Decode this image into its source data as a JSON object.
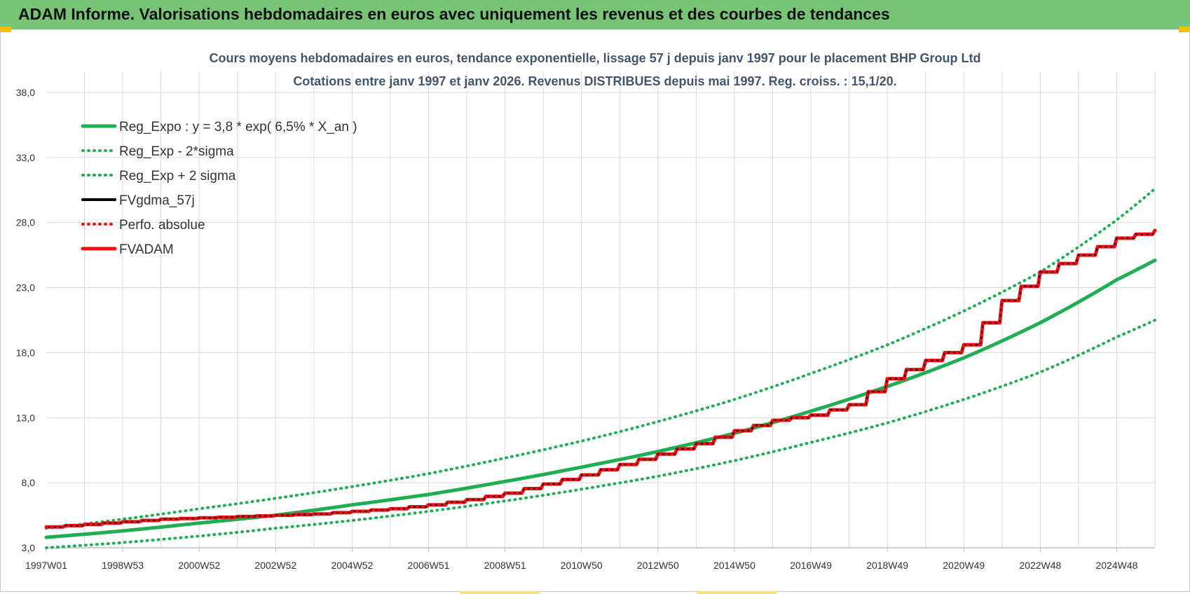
{
  "header": {
    "title": "ADAM Informe. Valorisations hebdomadaires en euros avec uniquement les revenus et des courbes de tendances"
  },
  "colors": {
    "header_bg": "#77c477",
    "green": "#1fae52",
    "red": "#ee1111",
    "black": "#000000",
    "grid": "#d9d9d9"
  },
  "chart_data": {
    "type": "line",
    "title_lines": [
      "Cours moyens hebdomadaires en euros, tendance exponentielle, lissage 57 j depuis janv 1997  pour le placement BHP Group Ltd",
      "Cotations entre janv 1997 et janv 2026. Revenus DISTRIBUES depuis mai 1997.  Reg. croiss. : 15,1/20."
    ],
    "xlabel": "",
    "ylabel": "",
    "ylim": [
      3.0,
      38.0
    ],
    "xlim": [
      1997.0,
      2026.0
    ],
    "y_ticks": [
      "3,0",
      "8,0",
      "13,0",
      "18,0",
      "23,0",
      "28,0",
      "33,0",
      "38,0"
    ],
    "y_tick_values": [
      3,
      8,
      13,
      18,
      23,
      28,
      33,
      38
    ],
    "x_ticks": [
      "1997W01",
      "1998W53",
      "2000W52",
      "2002W52",
      "2004W52",
      "2006W51",
      "2008W51",
      "2010W50",
      "2012W50",
      "2014W50",
      "2016W49",
      "2018W49",
      "2020W49",
      "2022W48",
      "2024W48"
    ],
    "x_tick_values": [
      1997,
      1999,
      2001,
      2003,
      2005,
      2007,
      2009,
      2011,
      2013,
      2015,
      2017,
      2019,
      2021,
      2023,
      2025
    ],
    "grid": true,
    "legend_position": "top-left",
    "series": [
      {
        "name": "Reg_Expo : y = 3,8 * exp( 6,5% *  X_an )",
        "style": "solid-thick",
        "color": "#1fae52",
        "x": [
          1997,
          1999,
          2001,
          2003,
          2005,
          2007,
          2009,
          2011,
          2013,
          2015,
          2017,
          2019,
          2021,
          2023,
          2025,
          2026
        ],
        "y": [
          3.8,
          4.3,
          4.9,
          5.5,
          6.3,
          7.1,
          8.1,
          9.2,
          10.4,
          11.8,
          13.5,
          15.4,
          17.6,
          20.3,
          23.6,
          25.1
        ]
      },
      {
        "name": "Reg_Exp - 2*sigma",
        "style": "dotted",
        "color": "#1fae52",
        "x": [
          1997,
          1999,
          2001,
          2003,
          2005,
          2007,
          2009,
          2011,
          2013,
          2015,
          2017,
          2019,
          2021,
          2023,
          2025,
          2026
        ],
        "y": [
          3.0,
          3.4,
          3.9,
          4.5,
          5.1,
          5.8,
          6.6,
          7.5,
          8.5,
          9.7,
          11.1,
          12.6,
          14.4,
          16.5,
          19.2,
          20.5
        ]
      },
      {
        "name": "Reg_Exp + 2 sigma",
        "style": "dotted",
        "color": "#1fae52",
        "x": [
          1997,
          1999,
          2001,
          2003,
          2005,
          2007,
          2009,
          2011,
          2013,
          2015,
          2017,
          2019,
          2021,
          2023,
          2025,
          2026
        ],
        "y": [
          4.5,
          5.2,
          6.0,
          6.8,
          7.7,
          8.7,
          9.9,
          11.2,
          12.7,
          14.4,
          16.4,
          18.6,
          21.2,
          24.2,
          28.2,
          30.6
        ]
      },
      {
        "name": "FVgdma_57j",
        "style": "solid-thin",
        "color": "#000000",
        "x": [
          1997,
          1998,
          1999,
          2000,
          2001,
          2002,
          2003,
          2004,
          2005,
          2006,
          2007,
          2008,
          2009,
          2010,
          2011,
          2012,
          2013,
          2014,
          2015,
          2016,
          2017,
          2018,
          2019,
          2020,
          2021,
          2022,
          2023,
          2024,
          2025,
          2026
        ],
        "y": [
          4.6,
          4.8,
          5.0,
          5.2,
          5.3,
          5.4,
          5.5,
          5.6,
          5.8,
          6.0,
          6.3,
          6.7,
          7.2,
          7.9,
          8.6,
          9.4,
          10.2,
          11.0,
          12.0,
          12.8,
          13.2,
          14.0,
          16.0,
          17.4,
          18.6,
          22.0,
          24.2,
          25.5,
          26.8,
          27.4
        ]
      },
      {
        "name": "Perfo. absolue",
        "style": "dotted",
        "color": "#ee1111",
        "x": [
          1997,
          1998,
          1999,
          2000,
          2001,
          2002,
          2003,
          2004,
          2005,
          2006,
          2007,
          2008,
          2009,
          2010,
          2011,
          2012,
          2013,
          2014,
          2015,
          2016,
          2017,
          2018,
          2019,
          2020,
          2021,
          2022,
          2023,
          2024,
          2025,
          2026
        ],
        "y": [
          4.6,
          4.8,
          5.0,
          5.2,
          5.3,
          5.4,
          5.5,
          5.6,
          5.8,
          6.0,
          6.3,
          6.7,
          7.2,
          7.9,
          8.6,
          9.4,
          10.2,
          11.0,
          12.0,
          12.8,
          13.2,
          14.0,
          16.0,
          17.4,
          18.6,
          22.0,
          24.2,
          25.5,
          26.8,
          27.4
        ]
      },
      {
        "name": "FVADAM",
        "style": "solid-thick",
        "color": "#ee1111",
        "x": [
          1997,
          1998,
          1999,
          2000,
          2001,
          2002,
          2003,
          2004,
          2005,
          2006,
          2007,
          2008,
          2009,
          2010,
          2011,
          2012,
          2013,
          2014,
          2015,
          2016,
          2017,
          2018,
          2019,
          2020,
          2021,
          2022,
          2023,
          2024,
          2025,
          2026
        ],
        "y": [
          4.6,
          4.8,
          5.0,
          5.2,
          5.3,
          5.4,
          5.5,
          5.6,
          5.8,
          6.0,
          6.3,
          6.7,
          7.2,
          7.9,
          8.6,
          9.4,
          10.2,
          11.0,
          12.0,
          12.8,
          13.2,
          14.0,
          16.0,
          17.4,
          18.6,
          22.0,
          24.2,
          25.5,
          26.8,
          27.4
        ]
      }
    ]
  }
}
